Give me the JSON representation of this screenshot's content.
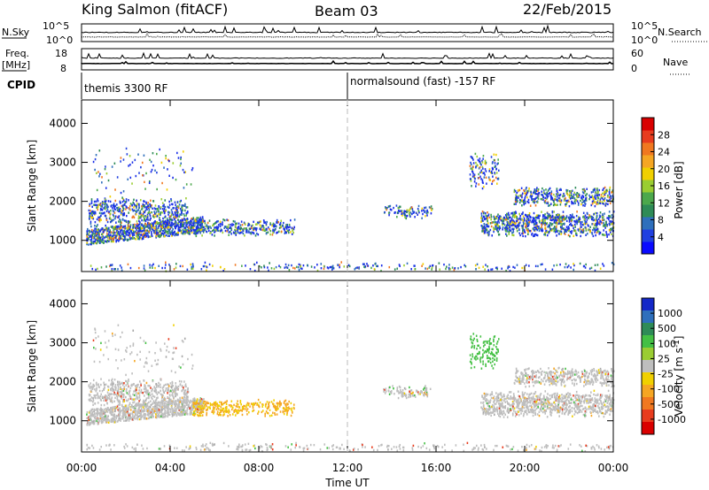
{
  "header": {
    "station": "King Salmon (fitACF)",
    "beam": "Beam 03",
    "date": "22/Feb/2015"
  },
  "strip_labels": {
    "nsky": "N.Sky",
    "nsky_ticks": [
      "10^5",
      "10^0"
    ],
    "nsearch": "N.Search",
    "nsearch_ticks": [
      "10^5",
      "10^0"
    ],
    "freq_top": "Freq.",
    "freq_unit": "[MHz]",
    "freq_ticks": [
      "18",
      "8"
    ],
    "nave": "Nave",
    "nave_ticks": [
      "60",
      "0"
    ],
    "cpid": "CPID",
    "cpid_modes": [
      "themis 3300 RF",
      "normalsound (fast) -157 RF"
    ]
  },
  "chart_data": [
    {
      "type": "heatmap",
      "name": "power-panel",
      "ylabel": "Slant Range [km]",
      "xlabel": "",
      "y_ticks": [
        1000,
        2000,
        3000,
        4000
      ],
      "ylim": [
        200,
        4600
      ],
      "x_ticks": [
        "00:00",
        "04:00",
        "08:00",
        "12:00",
        "16:00",
        "20:00",
        "00:00"
      ],
      "xlim_hours": [
        0,
        24
      ],
      "colorbar": {
        "label": "Power [dB]",
        "ticks": [
          "4",
          "8",
          "12",
          "16",
          "20",
          "24",
          "28"
        ],
        "colors": [
          "#0a0aff",
          "#2040e0",
          "#2e6fbc",
          "#2e8b57",
          "#4ca84c",
          "#9acd32",
          "#f0d000",
          "#f5a623",
          "#f07820",
          "#e83c1e",
          "#d90000"
        ]
      }
    },
    {
      "type": "heatmap",
      "name": "velocity-panel",
      "ylabel": "Slant Range [km]",
      "xlabel": "Time UT",
      "y_ticks": [
        1000,
        2000,
        3000,
        4000
      ],
      "ylim": [
        200,
        4600
      ],
      "x_ticks": [
        "00:00",
        "04:00",
        "08:00",
        "12:00",
        "16:00",
        "20:00",
        "00:00"
      ],
      "xlim_hours": [
        0,
        24
      ],
      "colorbar": {
        "label": "Velocity [m s",
        "label_sup": "-1",
        "label_end": "]",
        "ticks": [
          "1000",
          "500",
          "100",
          "25",
          "-25",
          "-100",
          "-500",
          "-1000"
        ],
        "colors": [
          "#1428c8",
          "#2e6fbc",
          "#2e8b57",
          "#44c044",
          "#9acd32",
          "#bebebe",
          "#f0d000",
          "#f5a623",
          "#f07820",
          "#e83c1e",
          "#d90000"
        ]
      }
    }
  ]
}
